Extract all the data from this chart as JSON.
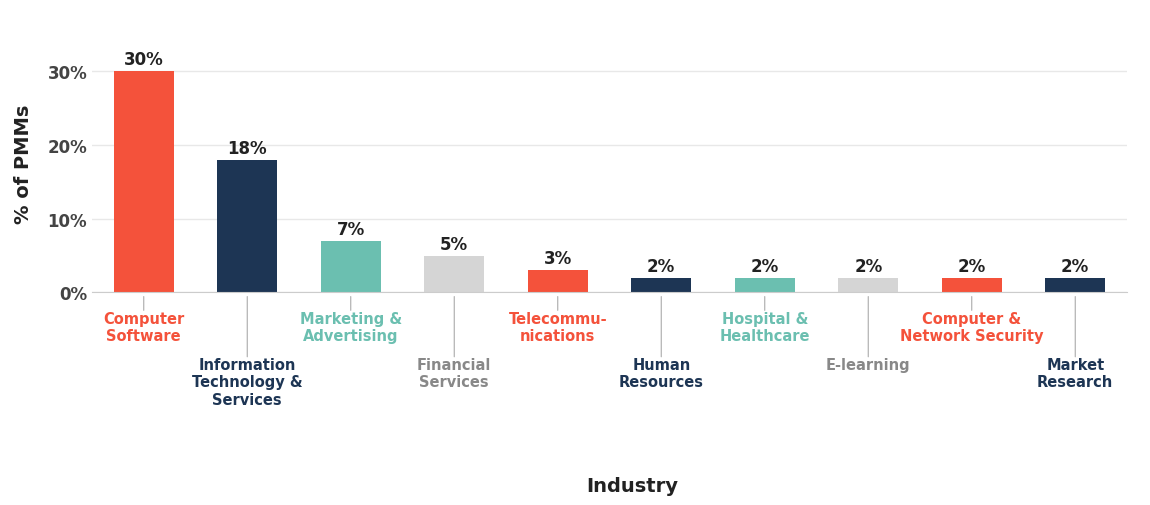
{
  "categories_row1": [
    "Computer\nSoftware",
    "",
    "Marketing &\nAdvertising",
    "",
    "Telecommu-\nnications",
    "",
    "Hospital &\nHealthcare",
    "",
    "Computer &\nNetwork Security",
    ""
  ],
  "categories_row2": [
    "",
    "Information\nTechnology &\nServices",
    "",
    "Financial\nServices",
    "",
    "Human\nResources",
    "",
    "E-learning",
    "",
    "Market\nResearch"
  ],
  "values": [
    30,
    18,
    7,
    5,
    3,
    2,
    2,
    2,
    2,
    2
  ],
  "bar_colors": [
    "#F4523B",
    "#1D3554",
    "#6BBFB0",
    "#D5D5D5",
    "#F4523B",
    "#1D3554",
    "#6BBFB0",
    "#D5D5D5",
    "#F4523B",
    "#1D3554"
  ],
  "label_colors_row1": [
    "#F4523B",
    "",
    "#6BBFB0",
    "",
    "#F4523B",
    "",
    "#6BBFB0",
    "",
    "#F4523B",
    ""
  ],
  "label_colors_row2": [
    "",
    "#1D3554",
    "",
    "#888888",
    "",
    "#1D3554",
    "",
    "#888888",
    "",
    "#1D3554"
  ],
  "ylabel": "% of PMMs",
  "xlabel": "Industry",
  "yticks": [
    0,
    10,
    20,
    30
  ],
  "ytick_labels": [
    "0%",
    "10%",
    "20%",
    "30%"
  ],
  "background_color": "#FFFFFF",
  "grid_color": "#E8E8E8",
  "label_fontsize": 10.5,
  "bar_label_fontsize": 12,
  "axis_label_fontsize": 14
}
